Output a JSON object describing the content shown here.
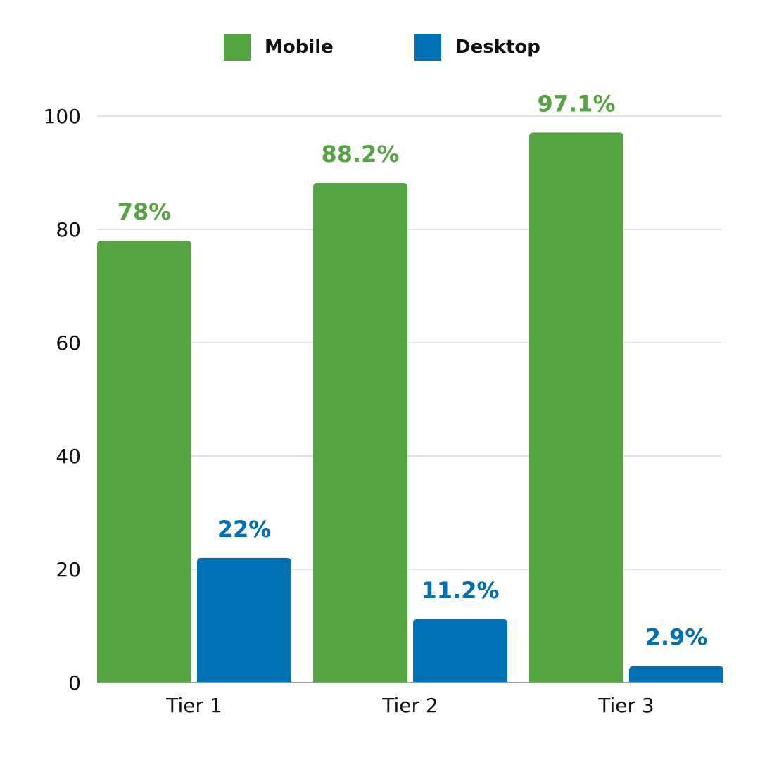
{
  "colors": {
    "mobile": "#56a344",
    "desktop": "#0070b5",
    "grid": "#d0d0d0",
    "axis": "#9a9a9a"
  },
  "legend": [
    {
      "label": "Mobile",
      "color": "#56a344"
    },
    {
      "label": "Desktop",
      "color": "#0070b5"
    }
  ],
  "chart_data": {
    "type": "bar",
    "title": "",
    "xlabel": "",
    "ylabel": "",
    "categories": [
      "Tier 1",
      "Tier 2",
      "Tier 3"
    ],
    "series": [
      {
        "name": "Mobile",
        "values": [
          78,
          88.2,
          97.1
        ],
        "labels": [
          "78%",
          "88.2%",
          "97.1%"
        ],
        "color": "#56a344"
      },
      {
        "name": "Desktop",
        "values": [
          22,
          11.2,
          2.9
        ],
        "labels": [
          "22%",
          "11.2%",
          "2.9%"
        ],
        "color": "#0070b5"
      }
    ],
    "ylim": [
      0,
      100
    ],
    "yticks": [
      0,
      20,
      40,
      60,
      80,
      100
    ],
    "ytick_labels": [
      "0",
      "20",
      "40",
      "60",
      "80",
      "100"
    ],
    "grid": true,
    "legend_position": "top-center"
  }
}
